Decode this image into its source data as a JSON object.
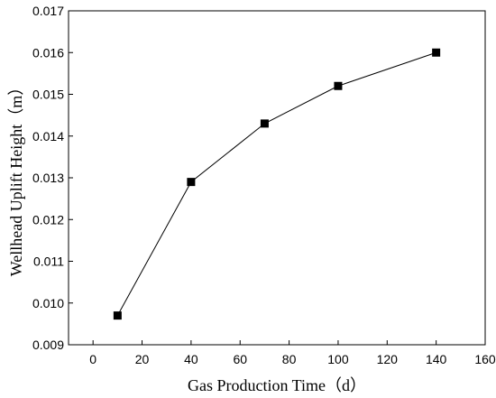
{
  "chart_data": {
    "type": "line",
    "x": [
      10,
      40,
      70,
      100,
      140
    ],
    "series": [
      {
        "values": [
          0.0097,
          0.0129,
          0.0143,
          0.0152,
          0.016
        ]
      }
    ],
    "xlabel": "Gas Production Time（d）",
    "ylabel": "Wellhead Uplift Height（m）",
    "xlim": [
      -10,
      160
    ],
    "ylim": [
      0.009,
      0.017
    ],
    "xticks": [
      0,
      20,
      40,
      60,
      80,
      100,
      120,
      140,
      160
    ],
    "yticks": [
      0.009,
      0.01,
      0.011,
      0.012,
      0.013,
      0.014,
      0.015,
      0.016,
      0.017
    ],
    "xtick_labels": [
      "0",
      "20",
      "40",
      "60",
      "80",
      "100",
      "120",
      "140",
      "160"
    ],
    "ytick_labels": [
      "0.009",
      "0.010",
      "0.011",
      "0.012",
      "0.013",
      "0.014",
      "0.015",
      "0.016",
      "0.017"
    ],
    "marker": "square",
    "grid": false,
    "line_color": "#000000",
    "marker_color": "#000000"
  }
}
